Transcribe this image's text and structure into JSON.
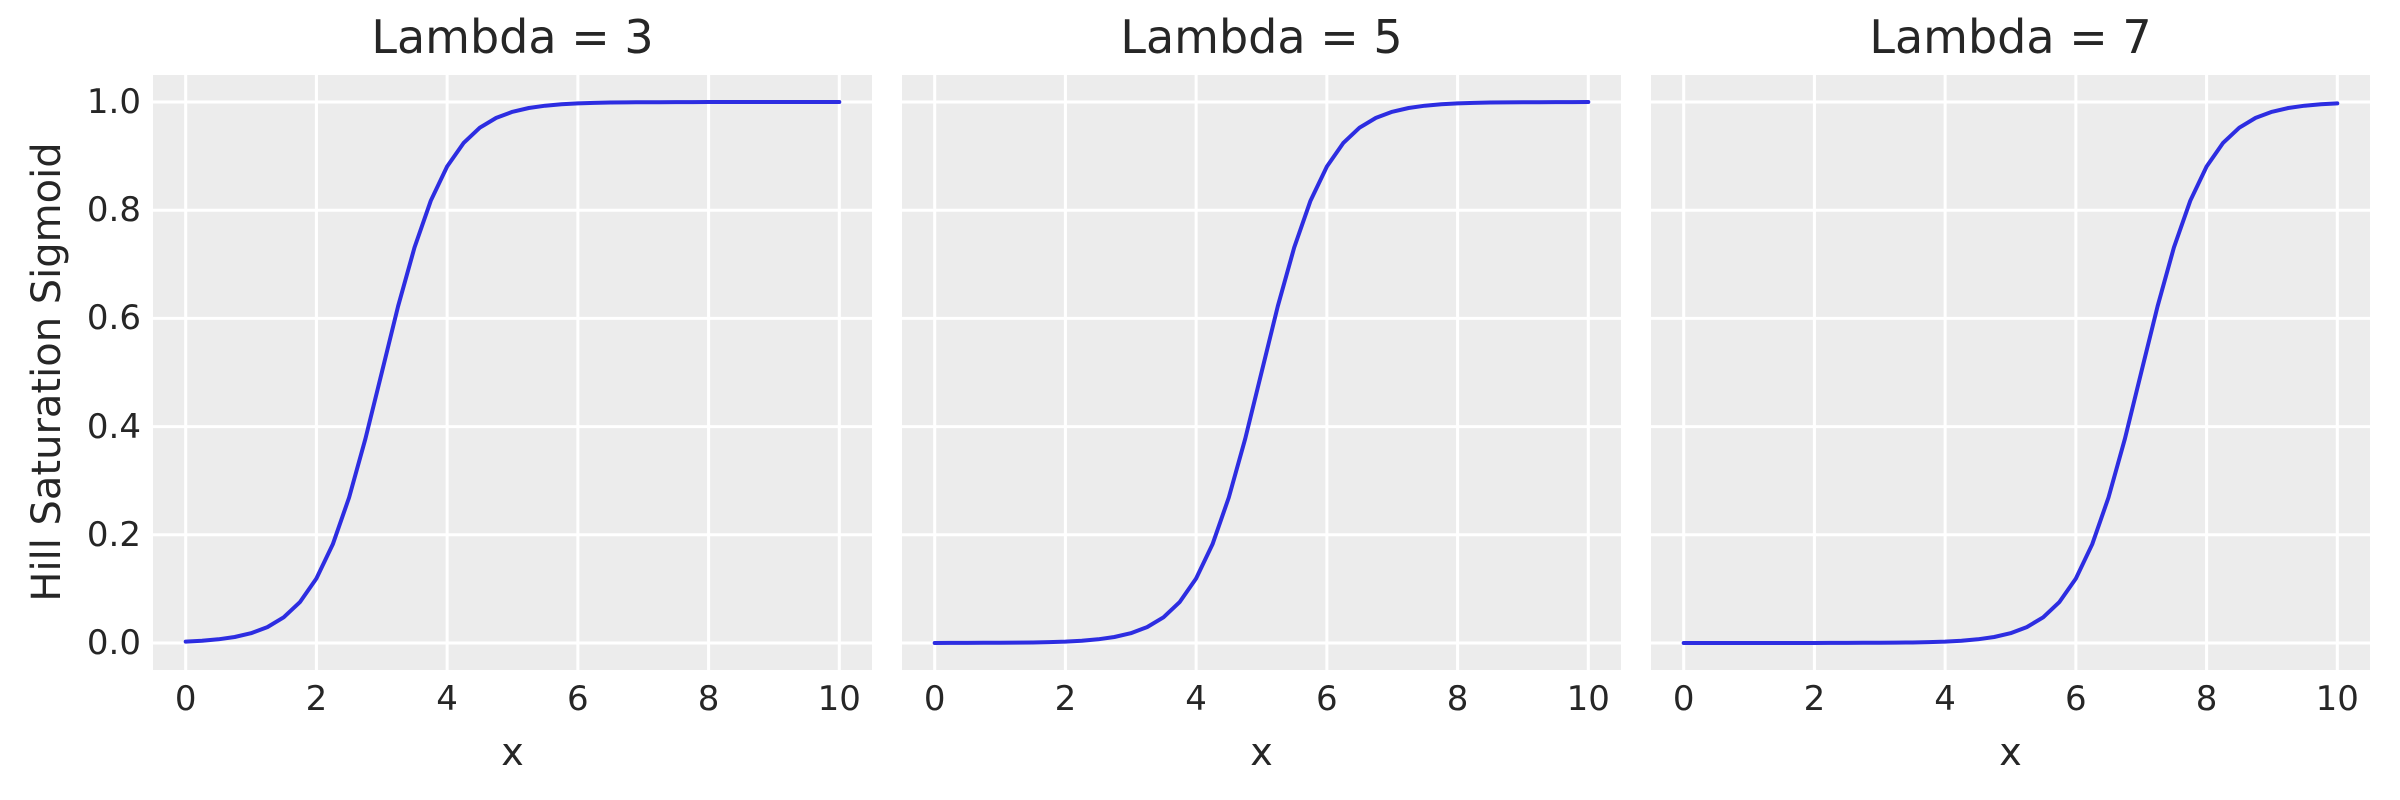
{
  "chart_data": {
    "type": "line",
    "xlabel": "x",
    "ylabel": "Hill Saturation Sigmoid",
    "xlim": [
      -0.5,
      10.5
    ],
    "ylim": [
      -0.05,
      1.05
    ],
    "xticks": [
      0,
      2,
      4,
      6,
      8,
      10
    ],
    "yticks": [
      0.0,
      0.2,
      0.4,
      0.6,
      0.8,
      1.0
    ],
    "ytick_labels": [
      "0.0",
      "0.2",
      "0.4",
      "0.6",
      "0.8",
      "1.0"
    ],
    "grid": "major gridlines on, white",
    "legend_position": "none",
    "colors": {
      "line": "#2d2de1",
      "plot_background": "#ececec",
      "grid": "#ffffff",
      "text": "#262626",
      "figure_background": "#ffffff"
    },
    "x": [
      0,
      0.25,
      0.5,
      0.75,
      1,
      1.25,
      1.5,
      1.75,
      2,
      2.25,
      2.5,
      2.75,
      3,
      3.25,
      3.5,
      3.75,
      4,
      4.25,
      4.5,
      4.75,
      5,
      5.25,
      5.5,
      5.75,
      6,
      6.25,
      6.5,
      6.75,
      7,
      7.25,
      7.5,
      7.75,
      8,
      8.25,
      8.5,
      8.75,
      9,
      9.25,
      9.5,
      9.75,
      10
    ],
    "panels": [
      {
        "title": "Lambda = 3",
        "lambda": 3,
        "values": [
          0.0025,
          0.0041,
          0.0067,
          0.011,
          0.018,
          0.0293,
          0.0474,
          0.0759,
          0.1192,
          0.1824,
          0.2689,
          0.3775,
          0.5,
          0.6225,
          0.7311,
          0.8176,
          0.8808,
          0.9241,
          0.9526,
          0.9707,
          0.982,
          0.989,
          0.9933,
          0.9959,
          0.9975,
          0.9985,
          0.9991,
          0.9994,
          0.9997,
          0.9998,
          0.9999,
          0.9999,
          1,
          1,
          1,
          1,
          1,
          1,
          1,
          1,
          1
        ]
      },
      {
        "title": "Lambda = 5",
        "lambda": 5,
        "values": [
          0,
          0.0001,
          0.0001,
          0.0002,
          0.0003,
          0.0006,
          0.0009,
          0.0015,
          0.0025,
          0.0041,
          0.0067,
          0.011,
          0.018,
          0.0293,
          0.0474,
          0.0759,
          0.1192,
          0.1824,
          0.2689,
          0.3775,
          0.5,
          0.6225,
          0.7311,
          0.8176,
          0.8808,
          0.9241,
          0.9526,
          0.9707,
          0.982,
          0.989,
          0.9933,
          0.9959,
          0.9975,
          0.9985,
          0.9991,
          0.9994,
          0.9997,
          0.9998,
          0.9999,
          0.9999,
          1
        ]
      },
      {
        "title": "Lambda = 7",
        "lambda": 7,
        "values": [
          0,
          0,
          0,
          0,
          0,
          0,
          0,
          0,
          0,
          0.0001,
          0.0001,
          0.0002,
          0.0003,
          0.0006,
          0.0009,
          0.0015,
          0.0025,
          0.0041,
          0.0067,
          0.011,
          0.018,
          0.0293,
          0.0474,
          0.0759,
          0.1192,
          0.1824,
          0.2689,
          0.3775,
          0.5,
          0.6225,
          0.7311,
          0.8176,
          0.8808,
          0.9241,
          0.9526,
          0.9707,
          0.982,
          0.989,
          0.9933,
          0.9959,
          0.9975
        ]
      }
    ]
  }
}
